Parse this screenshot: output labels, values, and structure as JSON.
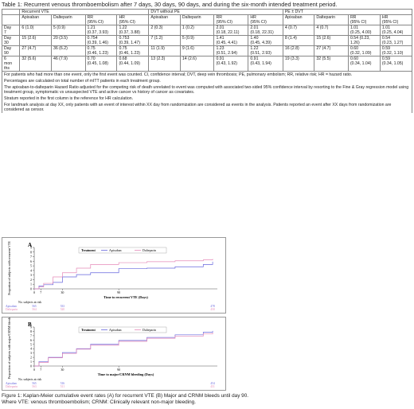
{
  "caption": "Table 1: Recurrent venous thromboembolism after 7 days, 30 days, 90 days, and during the six-month intended treatment period.",
  "groups": [
    "Recurrent VTE",
    "DVT without PE",
    "PE ± DVT"
  ],
  "subhead": {
    "apix": "Apixaban",
    "dalt": "Dalteparin",
    "rr": "RR\n(95% CI)",
    "hr": "HR\n(95% CI)"
  },
  "rows": [
    {
      "label": "Day\n7",
      "cells": [
        "6 (1.0)",
        "5 (0.9)",
        "1.21\n(0.37, 3.93)",
        "1.22\n(0.37, 3.88)",
        "2 (0.3)",
        "1 (0.2)",
        "2.01\n(0.18, 22.11)",
        "2.01\n(0.18, 22.31)",
        "4 (0.7)",
        "4 (0.7)",
        "1.01\n(0.25, 4.00)",
        "1.01\n(0.25, 4.04)"
      ]
    },
    {
      "label": "Day\n30",
      "cells": [
        "15 (2.6)",
        "20 (3.5)",
        "0.754\n(0.39, 1.46)",
        "0.753\n(0.39, 1.47)",
        "7 (1.2)",
        "5 (0.9)",
        "1.41\n(0.45, 4.41)",
        "1.40\n(0.45, 4.39)",
        "8 (1.4)",
        "15 (2.6)",
        "0.54 (0.23,\n1.26)",
        "0.54\n(0.23, 1.27)"
      ]
    },
    {
      "label": "Day\n90",
      "cells": [
        "27 (4.7)",
        "36 (6.2)",
        "0.75\n(0.46, 1.23)",
        "0.75\n(0.46, 1.23)",
        "11 (1.9)",
        "9 (1.6)",
        "1.23\n(0.51, 2.94)",
        "1.22\n(0.51, 2.93)",
        "16 (2.8)",
        "27 (4.7)",
        "0.60\n(0.32, 1.09)",
        "0.59\n(0.32, 1.10)"
      ]
    },
    {
      "label": "6\nmon\nths",
      "cells": [
        "32 (5.6)",
        "46 (7.9)",
        "0.70\n(0.45, 1.08)",
        "0.68\n(0.44, 1.09)",
        "13 (2.3)",
        "14 (2.6)",
        "0.91\n(0.43, 1.92)",
        "0.91\n(0.43, 1.94)",
        "19 (3.3)",
        "32 (5.5)",
        "0.60\n(0.34, 1.04)",
        "0.59\n(0.34, 1.05)"
      ]
    }
  ],
  "notes": [
    "For patients who had more than one event, only the first event was counted. CI, confidence interval; DVT, deep vein thrombosis; PE, pulmonary embolism; RR, relative risk; HR = hazard ratio.",
    "Percentages are calculated on total number of mITT patients in each treatment group.",
    "The apixaban-to-dalteparin Hazard Ratio adjusted for the competing risk of death unrelated to event was computed with associated two-sided 95% confidence interval by resorting to the Fine & Gray regression model using treatment group, symptomatic vs unsuspected VTE and active cancer vs history of cancer as covariates.",
    "Stratum reported in the first column is the reference for HR calculation.",
    "For landmark analysis at day XX, only patients with an event of interest within XX day from randomization are considered as events in the analysis. Patients reported an event after XX days from randomization are considered as censor."
  ],
  "panels": [
    {
      "letter": "A",
      "ylabel": "Proportion of subjects with recurrent VTE",
      "xlabel": "Time to recurrent VTE (Days)",
      "yticks": [
        "0",
        "1",
        "2",
        "3",
        "4",
        "5",
        "6",
        "7",
        "8",
        "9"
      ],
      "xticks": [
        "0",
        "7",
        "30",
        "90"
      ],
      "legend_title": "Treatment",
      "series": [
        {
          "name": "Apixaban",
          "color": "#6666dd",
          "points": [
            [
              0,
              0
            ],
            [
              5,
              0.6
            ],
            [
              10,
              0.9
            ],
            [
              20,
              1.4
            ],
            [
              30,
              2.6
            ],
            [
              45,
              3.1
            ],
            [
              60,
              3.5
            ],
            [
              90,
              4.4
            ],
            [
              120,
              4.5
            ],
            [
              150,
              4.8
            ],
            [
              180,
              5.3
            ],
            [
              190,
              5.9
            ]
          ]
        },
        {
          "name": "Dalteparin",
          "color": "#e58ab8",
          "points": [
            [
              0,
              0
            ],
            [
              5,
              0.4
            ],
            [
              10,
              1.2
            ],
            [
              20,
              2.6
            ],
            [
              30,
              3.5
            ],
            [
              45,
              4.5
            ],
            [
              60,
              5.3
            ],
            [
              90,
              5.7
            ],
            [
              120,
              5.9
            ],
            [
              150,
              6.1
            ],
            [
              180,
              6.3
            ],
            [
              190,
              6.5
            ]
          ]
        }
      ],
      "risk_title": "No. subjects at risk",
      "risk": [
        {
          "name": "Apixaban",
          "values": [
            "565",
            "",
            "533",
            "",
            "",
            "",
            "478"
          ]
        },
        {
          "name": "Dalteparin",
          "values": [
            "564",
            "",
            "520",
            "",
            "",
            "",
            "450"
          ]
        }
      ]
    },
    {
      "letter": "B",
      "ylabel": "Proportion of subjects with major/CRNM bleeding",
      "xlabel": "Time to major/CRNM bleeding (Days)",
      "yticks": [
        "0",
        "1",
        "2",
        "3",
        "4",
        "5",
        "6",
        "7",
        "8",
        "9"
      ],
      "xticks": [
        "0",
        "7",
        "30",
        "90"
      ],
      "legend_title": "Treatment",
      "series": [
        {
          "name": "Apixaban",
          "color": "#6666dd",
          "points": [
            [
              0,
              0
            ],
            [
              5,
              1.0
            ],
            [
              15,
              2.0
            ],
            [
              30,
              3.1
            ],
            [
              45,
              4.0
            ],
            [
              60,
              5.0
            ],
            [
              90,
              5.9
            ],
            [
              120,
              6.6
            ],
            [
              150,
              7.2
            ],
            [
              180,
              7.8
            ],
            [
              190,
              8.1
            ]
          ]
        },
        {
          "name": "Dalteparin",
          "color": "#e58ab8",
          "points": [
            [
              0,
              0
            ],
            [
              5,
              0.8
            ],
            [
              15,
              1.9
            ],
            [
              30,
              2.9
            ],
            [
              45,
              3.9
            ],
            [
              60,
              4.8
            ],
            [
              90,
              5.7
            ],
            [
              120,
              6.4
            ],
            [
              150,
              6.9
            ],
            [
              180,
              7.4
            ],
            [
              190,
              7.7
            ]
          ]
        }
      ],
      "risk_title": "No. subjects at risk",
      "risk": [
        {
          "name": "Apixaban",
          "values": [
            "565",
            "",
            "516",
            "",
            "",
            "",
            "454"
          ]
        },
        {
          "name": "Dalteparin",
          "values": [
            "563",
            "",
            "511",
            "",
            "",
            "",
            "451"
          ]
        }
      ]
    }
  ],
  "fig_caption": "Figure 1: Kaplan-Meier cumulative event rates (A) for recurrent VTE (B) Major and CRNM bleeds until day 90. Where VTE: venous thromboembolism; CRNM: Clinically relevant non-major bleeding."
}
